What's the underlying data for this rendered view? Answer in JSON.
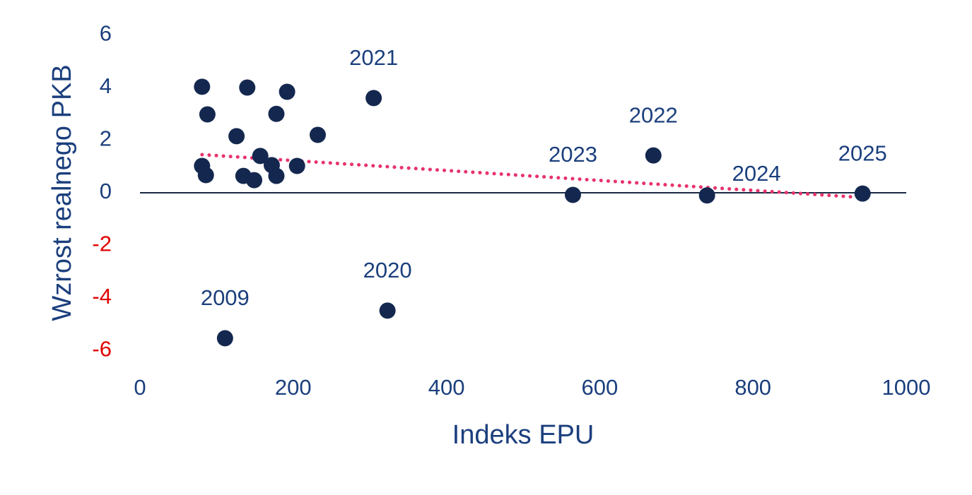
{
  "chart_data": {
    "type": "scatter",
    "x_label": "Indeks EPU",
    "y_label": "Wzrost realnego PKB",
    "x": [
      81,
      140,
      192,
      88,
      178,
      305,
      126,
      232,
      157,
      81,
      86,
      172,
      205,
      135,
      149,
      178,
      111,
      323,
      565,
      670,
      740,
      943
    ],
    "y": [
      4.03,
      4.0,
      3.84,
      2.98,
      3.0,
      3.6,
      2.15,
      2.2,
      1.4,
      1.02,
      0.67,
      1.05,
      1.02,
      0.64,
      0.48,
      0.64,
      -5.53,
      -4.48,
      -0.08,
      1.42,
      -0.1,
      -0.03
    ],
    "point_labels": [
      null,
      null,
      null,
      null,
      null,
      "2021",
      null,
      null,
      null,
      null,
      null,
      null,
      null,
      null,
      null,
      null,
      "2009",
      "2020",
      "2023",
      "2022",
      "2024",
      "2025"
    ],
    "color": "#14284f",
    "trendline": {
      "x": [
        81,
        943
      ],
      "y": [
        1.45,
        -0.18
      ],
      "color": "#e8336b"
    },
    "xlim": [
      0,
      1000
    ],
    "xticks": [
      0,
      200,
      400,
      600,
      800,
      1000
    ],
    "ylim": [
      -6,
      6
    ],
    "yticks": [
      6,
      4,
      2,
      0,
      -2,
      -4,
      -6
    ],
    "negative_tick_color": "#e00000",
    "zero_line_color": "#1a2a44"
  }
}
